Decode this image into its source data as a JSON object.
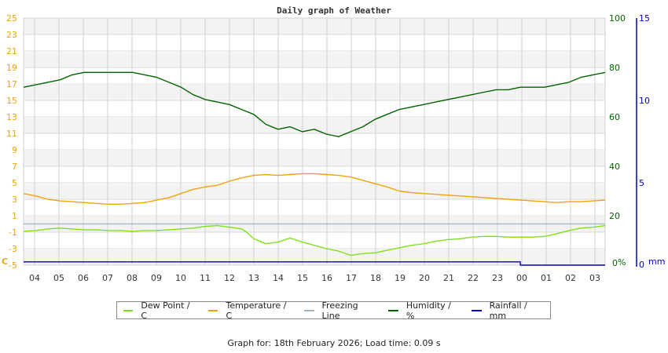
{
  "chart_data": {
    "type": "line",
    "title": "Daily graph of Weather",
    "x_tick_labels": [
      "04",
      "05",
      "06",
      "07",
      "08",
      "09",
      "10",
      "11",
      "12",
      "13",
      "14",
      "15",
      "16",
      "17",
      "18",
      "19",
      "20",
      "21",
      "22",
      "23",
      "00",
      "01",
      "02",
      "03"
    ],
    "xlabel": "",
    "axes": {
      "left": {
        "label": "C",
        "min": -5,
        "max": 25,
        "ticks": [
          25,
          23,
          21,
          19,
          17,
          15,
          13,
          11,
          9,
          7,
          5,
          3,
          1,
          -1,
          -3,
          -5
        ],
        "color": "#f0a30a"
      },
      "right_humidity": {
        "label": "%",
        "min": 0,
        "max": 100,
        "ticks": [
          100,
          80,
          60,
          40,
          20,
          0
        ],
        "color": "#006400"
      },
      "right_rainfall": {
        "label": "mm",
        "min": 0,
        "max": 15,
        "ticks": [
          15,
          10,
          5,
          0
        ],
        "color": "#0000cc"
      }
    },
    "grid": true,
    "legend_position": "bottom",
    "series": [
      {
        "name": "Dew Point / C",
        "color": "#7fe01a",
        "axis": "left",
        "x_hours_from_0330": [
          0,
          0.5,
          1,
          1.5,
          2,
          2.5,
          3,
          3.5,
          4,
          4.5,
          5,
          5.5,
          6,
          6.5,
          7,
          7.5,
          8,
          8.5,
          9,
          9.2,
          9.5,
          10,
          10.5,
          11,
          11.5,
          12,
          12.5,
          13,
          13.5,
          14,
          14.5,
          15,
          15.5,
          16,
          16.5,
          17,
          17.5,
          18,
          18.5,
          19,
          19.5,
          20,
          20.5,
          21,
          21.5,
          22,
          22.5,
          23,
          23.5,
          24
        ],
        "values": [
          -0.9,
          -0.8,
          -0.6,
          -0.5,
          -0.6,
          -0.7,
          -0.7,
          -0.8,
          -0.8,
          -0.9,
          -0.8,
          -0.8,
          -0.7,
          -0.6,
          -0.5,
          -0.3,
          -0.2,
          -0.4,
          -0.6,
          -1.0,
          -1.8,
          -2.4,
          -2.2,
          -1.7,
          -2.2,
          -2.6,
          -3.0,
          -3.3,
          -3.8,
          -3.6,
          -3.5,
          -3.2,
          -2.9,
          -2.6,
          -2.4,
          -2.1,
          -1.9,
          -1.8,
          -1.6,
          -1.5,
          -1.5,
          -1.6,
          -1.6,
          -1.6,
          -1.5,
          -1.2,
          -0.8,
          -0.5,
          -0.4,
          -0.2
        ]
      },
      {
        "name": "Temperature / C",
        "color": "#f0a30a",
        "axis": "left",
        "x_hours_from_0330": [
          0,
          0.5,
          1,
          1.5,
          2,
          2.5,
          3,
          3.5,
          4,
          4.5,
          5,
          5.5,
          6,
          6.5,
          7,
          7.5,
          8,
          8.5,
          9,
          9.5,
          10,
          10.5,
          11,
          11.5,
          12,
          12.5,
          13,
          13.5,
          14,
          14.5,
          15,
          15.5,
          16,
          16.5,
          17,
          17.5,
          18,
          18.5,
          19,
          19.5,
          20,
          20.5,
          21,
          21.5,
          22,
          22.5,
          23,
          23.5,
          24
        ],
        "values": [
          3.7,
          3.4,
          3.0,
          2.8,
          2.7,
          2.6,
          2.5,
          2.4,
          2.4,
          2.5,
          2.6,
          2.9,
          3.2,
          3.7,
          4.2,
          4.5,
          4.7,
          5.2,
          5.6,
          5.9,
          6.0,
          5.9,
          6.0,
          6.1,
          6.1,
          6.0,
          5.9,
          5.7,
          5.3,
          4.9,
          4.5,
          4.0,
          3.8,
          3.7,
          3.6,
          3.5,
          3.4,
          3.3,
          3.2,
          3.1,
          3.0,
          2.9,
          2.8,
          2.7,
          2.6,
          2.7,
          2.7,
          2.8,
          2.9
        ]
      },
      {
        "name": "Freezing Line",
        "color": "#a0b4c8",
        "axis": "left",
        "x_hours_from_0330": [
          0,
          24
        ],
        "values": [
          0,
          0
        ]
      },
      {
        "name": "Humidity / %",
        "color": "#006400",
        "axis": "right_humidity",
        "x_hours_from_0330": [
          0,
          0.5,
          1,
          1.5,
          2,
          2.5,
          3,
          3.5,
          4,
          4.5,
          5,
          5.5,
          6,
          6.5,
          7,
          7.5,
          8,
          8.5,
          9,
          9.5,
          10,
          10.5,
          11,
          11.5,
          12,
          12.5,
          13,
          13.5,
          14,
          14.5,
          15,
          15.5,
          16,
          16.5,
          17,
          17.5,
          18,
          18.5,
          19,
          19.5,
          20,
          20.5,
          21,
          21.5,
          22,
          22.5,
          23,
          23.5,
          24
        ],
        "values": [
          72,
          73,
          74,
          75,
          77,
          78,
          78,
          78,
          78,
          78,
          77,
          76,
          74,
          72,
          69,
          67,
          66,
          65,
          63,
          61,
          57,
          55,
          56,
          54,
          55,
          53,
          52,
          54,
          56,
          59,
          61,
          63,
          64,
          65,
          66,
          67,
          68,
          69,
          70,
          71,
          71,
          72,
          72,
          72,
          73,
          74,
          76,
          77,
          78
        ]
      },
      {
        "name": "Rainfall / mm",
        "color": "#0000cc",
        "axis": "right_rainfall",
        "x_hours_from_0330": [
          0,
          20.5,
          20.5,
          24
        ],
        "values": [
          0.2,
          0.2,
          0.0,
          0.0
        ]
      }
    ]
  },
  "legend": {
    "items": [
      {
        "label": "Dew Point / C",
        "color": "#7fe01a"
      },
      {
        "label": "Temperature / C",
        "color": "#f0a30a"
      },
      {
        "label": "Freezing Line",
        "color": "#a0b4c8"
      },
      {
        "label": "Humidity / %",
        "color": "#006400"
      },
      {
        "label": "Rainfall / mm",
        "color": "#0000cc"
      }
    ]
  },
  "footer": {
    "text": "Graph for: 18th February 2026; Load time: 0.09 s"
  }
}
